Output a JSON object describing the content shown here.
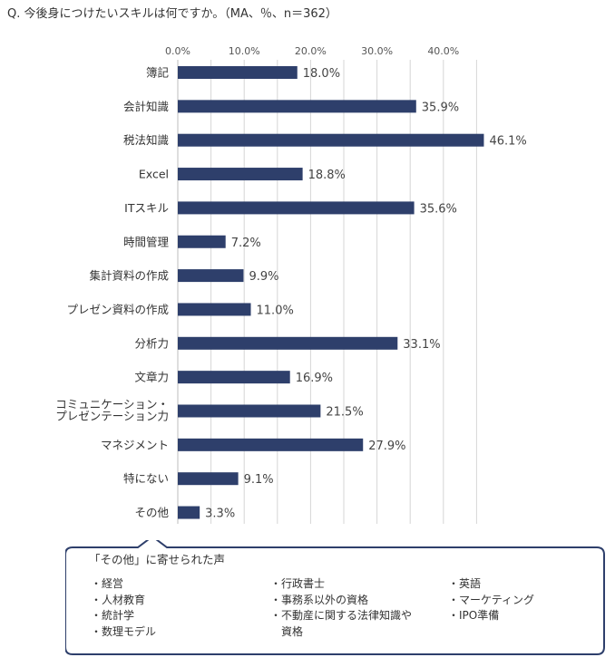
{
  "question": "Q. 今後身につけたいスキルは何ですか。（MA、％、n＝362）",
  "chart_data": {
    "type": "bar",
    "orientation": "horizontal",
    "title": "Q. 今後身につけたいスキルは何ですか。（MA、％、n＝362）",
    "categories": [
      "簿記",
      "会計知識",
      "税法知識",
      "Excel",
      "ITスキル",
      "時間管理",
      "集計資料の作成",
      "プレゼン資料の作成",
      "分析力",
      "文章力",
      "コミュニケーション・\nプレゼンテーション力",
      "マネジメント",
      "特にない",
      "その他"
    ],
    "values": [
      18.0,
      35.9,
      46.1,
      18.8,
      35.6,
      7.2,
      9.9,
      11.0,
      33.1,
      16.9,
      21.5,
      27.9,
      9.1,
      3.3
    ],
    "value_labels": [
      "18.0%",
      "35.9%",
      "46.1%",
      "18.8%",
      "35.6%",
      "7.2%",
      "9.9%",
      "11.0%",
      "33.1%",
      "16.9%",
      "21.5%",
      "27.9%",
      "9.1%",
      "3.3%"
    ],
    "xlim": [
      0,
      45
    ],
    "xticks": [
      0,
      10,
      20,
      30,
      40
    ],
    "xtick_labels": [
      "0.0%",
      "10.0%",
      "20.0%",
      "30.0%",
      "40.0%"
    ],
    "grid": true,
    "bar_color": "#2e3f6b"
  },
  "callout": {
    "title": "「その他」に寄せられた声",
    "columns": [
      [
        "・経営",
        "・人材教育",
        "・統計学",
        "・数理モデル"
      ],
      [
        "・行政書士",
        "・事務系以外の資格",
        "・不動産に関する法律知識や\n　資格"
      ],
      [
        "・英語",
        "・マーケティング",
        "・IPO準備"
      ]
    ],
    "border_color": "#2e3f6b"
  }
}
